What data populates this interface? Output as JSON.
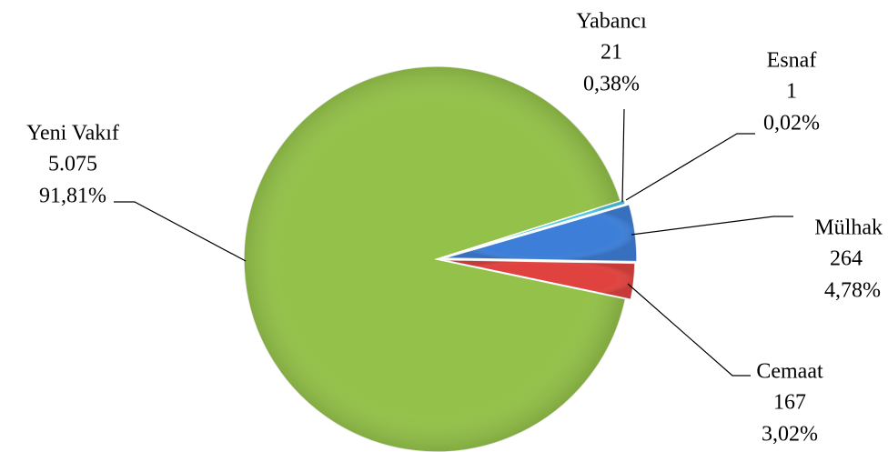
{
  "chart_data": {
    "type": "pie",
    "categories": [
      "Cemaat",
      "Yeni Vakıf",
      "Yabancı",
      "Esnaf",
      "Mülhak"
    ],
    "values": [
      167,
      5075,
      21,
      1,
      264
    ],
    "value_labels": [
      "167",
      "5.075",
      "21",
      "1",
      "264"
    ],
    "percent_labels": [
      "3,02%",
      "91,81%",
      "0,38%",
      "0,02%",
      "4,78%"
    ],
    "colors": [
      "#e0433f",
      "#93c149",
      "#4cc8e4",
      "#b3a2c7",
      "#3d7fd8"
    ]
  }
}
